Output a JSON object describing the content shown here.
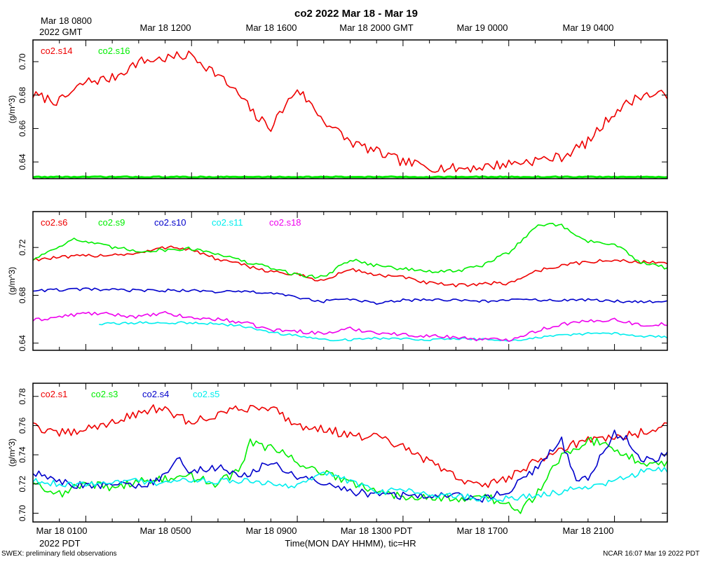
{
  "title": "co2 2022 Mar 18 - Mar 19",
  "top_axis": {
    "ticks": [
      "Mar 18 1200",
      "Mar 18 1600",
      "Mar 18 2000 GMT",
      "Mar 19 0000",
      "Mar 19 0400"
    ],
    "corner_line1": "Mar 18 0800",
    "corner_line2": "2022 GMT"
  },
  "bottom_axis": {
    "ticks": [
      "Mar 18 0100",
      "Mar 18 0500",
      "Mar 18 0900",
      "Mar 18 1300 PDT",
      "Mar 18 1700",
      "Mar 18 2100"
    ],
    "corner": "2022 PDT",
    "xlabel": "Time(MON DAY HHMM), tic=HR"
  },
  "footer_left": "SWEX: preliminary field observations",
  "footer_right": "NCAR 16:07 Mar 19 2022 PDT",
  "colors": {
    "red": "#ee0000",
    "green": "#00ee00",
    "blue": "#0000cc",
    "cyan": "#00eeee",
    "magenta": "#ee00ee",
    "frame": "#000000"
  },
  "chart_data": [
    {
      "type": "line",
      "ylabel": "(g/m^3)",
      "xlim": [
        0,
        24
      ],
      "ylim": [
        0.63,
        0.713
      ],
      "yticks": [
        0.64,
        0.66,
        0.68,
        0.7
      ],
      "ytick_labels": [
        "0.64",
        "0.66",
        "0.68",
        "0.70"
      ],
      "series": [
        {
          "name": "co2.s14",
          "color": "red",
          "noise": 0.003,
          "x": [
            0,
            1,
            2,
            3,
            4,
            5,
            6,
            7,
            7.8,
            8.5,
            9,
            10,
            11,
            12,
            13,
            14,
            15,
            16,
            17,
            18,
            19,
            20,
            21,
            22,
            23,
            24
          ],
          "y": [
            0.68,
            0.676,
            0.688,
            0.69,
            0.7,
            0.702,
            0.704,
            0.692,
            0.68,
            0.666,
            0.661,
            0.684,
            0.665,
            0.652,
            0.646,
            0.64,
            0.637,
            0.636,
            0.637,
            0.639,
            0.641,
            0.643,
            0.652,
            0.67,
            0.68,
            0.68
          ]
        },
        {
          "name": "co2.s16",
          "color": "green",
          "noise": 0.0003,
          "x": [
            0,
            24
          ],
          "y": [
            0.631,
            0.631
          ]
        }
      ]
    },
    {
      "type": "line",
      "ylabel": "(g/m^3)",
      "xlim": [
        0,
        24
      ],
      "ylim": [
        0.634,
        0.75
      ],
      "yticks": [
        0.64,
        0.68,
        0.72
      ],
      "ytick_labels": [
        "0.64",
        "0.68",
        "0.72"
      ],
      "series": [
        {
          "name": "co2.s6",
          "color": "red",
          "noise": 0.0015,
          "x": [
            0,
            2,
            4,
            5.2,
            6,
            7,
            8,
            9,
            10,
            11,
            12,
            13,
            14,
            15,
            16,
            17,
            18,
            19,
            20,
            21,
            22,
            23,
            24
          ],
          "y": [
            0.71,
            0.713,
            0.715,
            0.721,
            0.718,
            0.71,
            0.705,
            0.7,
            0.697,
            0.692,
            0.702,
            0.697,
            0.695,
            0.69,
            0.688,
            0.69,
            0.69,
            0.7,
            0.705,
            0.708,
            0.709,
            0.708,
            0.707
          ]
        },
        {
          "name": "co2.s9",
          "color": "green",
          "noise": 0.0015,
          "x": [
            0,
            1.5,
            3,
            4,
            5,
            6,
            7,
            8,
            9,
            10,
            11,
            11.5,
            12,
            13,
            14,
            15,
            16,
            17,
            18,
            19,
            19.5,
            20,
            21,
            22,
            23,
            24
          ],
          "y": [
            0.71,
            0.727,
            0.72,
            0.717,
            0.718,
            0.719,
            0.715,
            0.708,
            0.703,
            0.697,
            0.695,
            0.703,
            0.71,
            0.705,
            0.702,
            0.7,
            0.7,
            0.705,
            0.716,
            0.737,
            0.74,
            0.738,
            0.725,
            0.723,
            0.707,
            0.703
          ]
        },
        {
          "name": "co2.s10",
          "color": "blue",
          "noise": 0.0012,
          "x": [
            0,
            2,
            4,
            6,
            7,
            8,
            9,
            10,
            11,
            12,
            13,
            14,
            15,
            16,
            17,
            18,
            19,
            20,
            21,
            22,
            23,
            24
          ],
          "y": [
            0.684,
            0.685,
            0.684,
            0.684,
            0.683,
            0.683,
            0.682,
            0.678,
            0.675,
            0.677,
            0.673,
            0.676,
            0.676,
            0.676,
            0.675,
            0.676,
            0.676,
            0.676,
            0.676,
            0.675,
            0.675,
            0.675
          ]
        },
        {
          "name": "co2.s11",
          "color": "cyan",
          "noise": 0.001,
          "x": [
            2.5,
            4,
            6,
            7,
            8,
            9,
            10,
            11,
            12,
            13,
            14,
            15,
            16,
            17,
            18,
            19,
            20,
            21,
            22,
            23,
            24
          ],
          "y": [
            0.656,
            0.657,
            0.657,
            0.656,
            0.654,
            0.649,
            0.646,
            0.643,
            0.643,
            0.644,
            0.644,
            0.643,
            0.644,
            0.643,
            0.642,
            0.644,
            0.647,
            0.648,
            0.648,
            0.646,
            0.645
          ]
        },
        {
          "name": "co2.s18",
          "color": "magenta",
          "noise": 0.0015,
          "x": [
            0,
            1,
            2,
            3,
            4,
            5,
            6,
            7,
            8,
            9,
            10,
            11,
            12,
            13,
            14,
            15,
            16,
            17,
            18,
            19,
            20,
            21,
            22,
            23,
            24
          ],
          "y": [
            0.659,
            0.662,
            0.665,
            0.664,
            0.662,
            0.665,
            0.661,
            0.66,
            0.657,
            0.651,
            0.65,
            0.648,
            0.652,
            0.649,
            0.647,
            0.646,
            0.645,
            0.643,
            0.643,
            0.65,
            0.656,
            0.658,
            0.66,
            0.655,
            0.656
          ]
        }
      ]
    },
    {
      "type": "line",
      "ylabel": "(g/m^3)",
      "xlim": [
        0,
        24
      ],
      "ylim": [
        0.694,
        0.789
      ],
      "yticks": [
        0.7,
        0.72,
        0.74,
        0.76,
        0.78
      ],
      "ytick_labels": [
        "0.70",
        "0.72",
        "0.74",
        "0.76",
        "0.78"
      ],
      "series": [
        {
          "name": "co2.s1",
          "color": "red",
          "noise": 0.003,
          "x": [
            0,
            0.5,
            1.5,
            2.5,
            3.5,
            4.5,
            5,
            6,
            7,
            8,
            9,
            10,
            11,
            12,
            13,
            14,
            15,
            16,
            17,
            18,
            19,
            20,
            21,
            22,
            23,
            24
          ],
          "y": [
            0.763,
            0.755,
            0.755,
            0.76,
            0.765,
            0.772,
            0.77,
            0.762,
            0.768,
            0.772,
            0.773,
            0.76,
            0.758,
            0.753,
            0.752,
            0.745,
            0.735,
            0.725,
            0.718,
            0.725,
            0.735,
            0.745,
            0.75,
            0.752,
            0.755,
            0.762
          ]
        },
        {
          "name": "co2.s3",
          "color": "green",
          "noise": 0.003,
          "x": [
            0,
            1,
            2,
            3,
            4,
            5,
            6,
            7,
            7.8,
            8.2,
            9,
            10,
            11,
            12,
            13,
            14,
            15,
            16,
            17,
            18,
            18.3,
            19,
            20,
            21,
            22,
            23,
            24
          ],
          "y": [
            0.722,
            0.713,
            0.72,
            0.718,
            0.722,
            0.723,
            0.725,
            0.72,
            0.73,
            0.748,
            0.745,
            0.735,
            0.728,
            0.72,
            0.715,
            0.712,
            0.712,
            0.71,
            0.712,
            0.705,
            0.7,
            0.712,
            0.74,
            0.75,
            0.745,
            0.735,
            0.735
          ]
        },
        {
          "name": "co2.s4",
          "color": "blue",
          "noise": 0.0028,
          "x": [
            0,
            1,
            2,
            3,
            4,
            5,
            5.5,
            6,
            7,
            8,
            9,
            10,
            11,
            12,
            13,
            14,
            15,
            16,
            17,
            18,
            19,
            20,
            20.5,
            21,
            22,
            22.5,
            23,
            24
          ],
          "y": [
            0.728,
            0.722,
            0.718,
            0.72,
            0.718,
            0.725,
            0.738,
            0.728,
            0.732,
            0.725,
            0.735,
            0.725,
            0.72,
            0.715,
            0.713,
            0.712,
            0.712,
            0.712,
            0.71,
            0.715,
            0.73,
            0.75,
            0.723,
            0.723,
            0.755,
            0.75,
            0.735,
            0.74
          ]
        },
        {
          "name": "co2.s5",
          "color": "cyan",
          "noise": 0.0022,
          "x": [
            0,
            1,
            2,
            3,
            4,
            5,
            6,
            7,
            8,
            9,
            10,
            11,
            12,
            13,
            14,
            15,
            16,
            17,
            18,
            19,
            20,
            21,
            22,
            23,
            24
          ],
          "y": [
            0.722,
            0.72,
            0.72,
            0.722,
            0.722,
            0.72,
            0.723,
            0.722,
            0.722,
            0.72,
            0.718,
            0.728,
            0.722,
            0.715,
            0.716,
            0.713,
            0.712,
            0.71,
            0.71,
            0.712,
            0.715,
            0.718,
            0.722,
            0.728,
            0.73
          ]
        }
      ]
    }
  ]
}
